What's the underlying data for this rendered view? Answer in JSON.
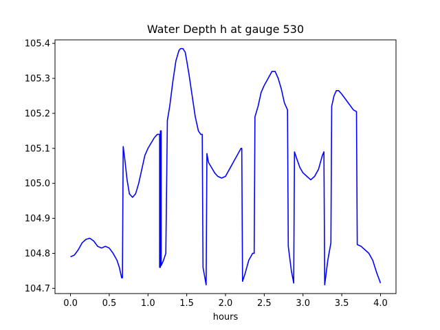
{
  "chart_data": {
    "type": "line",
    "title": "Water Depth h at gauge 530",
    "xlabel": "hours",
    "ylabel": "",
    "xlim": [
      -0.2,
      4.2
    ],
    "ylim": [
      104.685,
      105.41
    ],
    "xticks": [
      0.0,
      0.5,
      1.0,
      1.5,
      2.0,
      2.5,
      3.0,
      3.5,
      4.0
    ],
    "xtick_labels": [
      "0.0",
      "0.5",
      "1.0",
      "1.5",
      "2.0",
      "2.5",
      "3.0",
      "3.5",
      "4.0"
    ],
    "yticks": [
      104.7,
      104.8,
      104.9,
      105.0,
      105.1,
      105.2,
      105.3,
      105.4
    ],
    "ytick_labels": [
      "104.7",
      "104.8",
      "104.9",
      "105.0",
      "105.1",
      "105.2",
      "105.3",
      "105.4"
    ],
    "grid": false,
    "series": [
      {
        "color": "#0000ff",
        "x": [
          0.0,
          0.05,
          0.1,
          0.15,
          0.2,
          0.25,
          0.3,
          0.35,
          0.4,
          0.45,
          0.5,
          0.55,
          0.6,
          0.63,
          0.66,
          0.67,
          0.68,
          0.7,
          0.73,
          0.76,
          0.78,
          0.8,
          0.82,
          0.84,
          0.86,
          0.88,
          0.92,
          0.96,
          1.0,
          1.04,
          1.08,
          1.12,
          1.15,
          1.15,
          1.16,
          1.16,
          1.17,
          1.17,
          1.2,
          1.23,
          1.23,
          1.25,
          1.28,
          1.32,
          1.36,
          1.4,
          1.42,
          1.45,
          1.48,
          1.5,
          1.53,
          1.57,
          1.61,
          1.65,
          1.68,
          1.7,
          1.71,
          1.75,
          1.75,
          1.76,
          1.78,
          1.82,
          1.86,
          1.9,
          1.95,
          2.0,
          2.05,
          2.1,
          2.15,
          2.2,
          2.21,
          2.22,
          2.25,
          2.3,
          2.35,
          2.37,
          2.38,
          2.42,
          2.46,
          2.5,
          2.55,
          2.6,
          2.64,
          2.68,
          2.72,
          2.76,
          2.8,
          2.81,
          2.85,
          2.88,
          2.89,
          2.92,
          2.96,
          3.0,
          3.05,
          3.1,
          3.15,
          3.2,
          3.25,
          3.27,
          3.28,
          3.32,
          3.36,
          3.37,
          3.4,
          3.43,
          3.46,
          3.5,
          3.55,
          3.6,
          3.65,
          3.69,
          3.7,
          3.75,
          3.8,
          3.85,
          3.9,
          3.95,
          4.0
        ],
        "y": [
          104.79,
          104.795,
          104.81,
          104.83,
          104.84,
          104.843,
          104.835,
          104.82,
          104.815,
          104.82,
          104.815,
          104.8,
          104.78,
          104.76,
          104.73,
          104.73,
          105.105,
          105.07,
          105.01,
          104.97,
          104.965,
          104.96,
          104.965,
          104.97,
          104.985,
          105.0,
          105.04,
          105.08,
          105.1,
          105.115,
          105.13,
          105.14,
          105.14,
          104.76,
          104.76,
          105.15,
          105.15,
          104.765,
          104.78,
          104.8,
          104.8,
          105.18,
          105.22,
          105.29,
          105.35,
          105.38,
          105.385,
          105.385,
          105.375,
          105.35,
          105.31,
          105.25,
          105.19,
          105.15,
          105.14,
          105.14,
          104.76,
          104.71,
          104.71,
          105.085,
          105.06,
          105.045,
          105.03,
          105.02,
          105.015,
          105.02,
          105.04,
          105.06,
          105.08,
          105.1,
          105.1,
          104.72,
          104.74,
          104.78,
          104.8,
          104.8,
          105.19,
          105.22,
          105.26,
          105.28,
          105.3,
          105.32,
          105.32,
          105.3,
          105.27,
          105.23,
          105.21,
          104.82,
          104.75,
          104.715,
          105.09,
          105.07,
          105.045,
          105.03,
          105.02,
          105.01,
          105.02,
          105.04,
          105.08,
          105.09,
          104.71,
          104.78,
          104.83,
          105.22,
          105.25,
          105.265,
          105.265,
          105.255,
          105.24,
          105.225,
          105.21,
          105.205,
          104.825,
          104.82,
          104.81,
          104.8,
          104.78,
          104.745,
          104.715
        ]
      }
    ]
  }
}
